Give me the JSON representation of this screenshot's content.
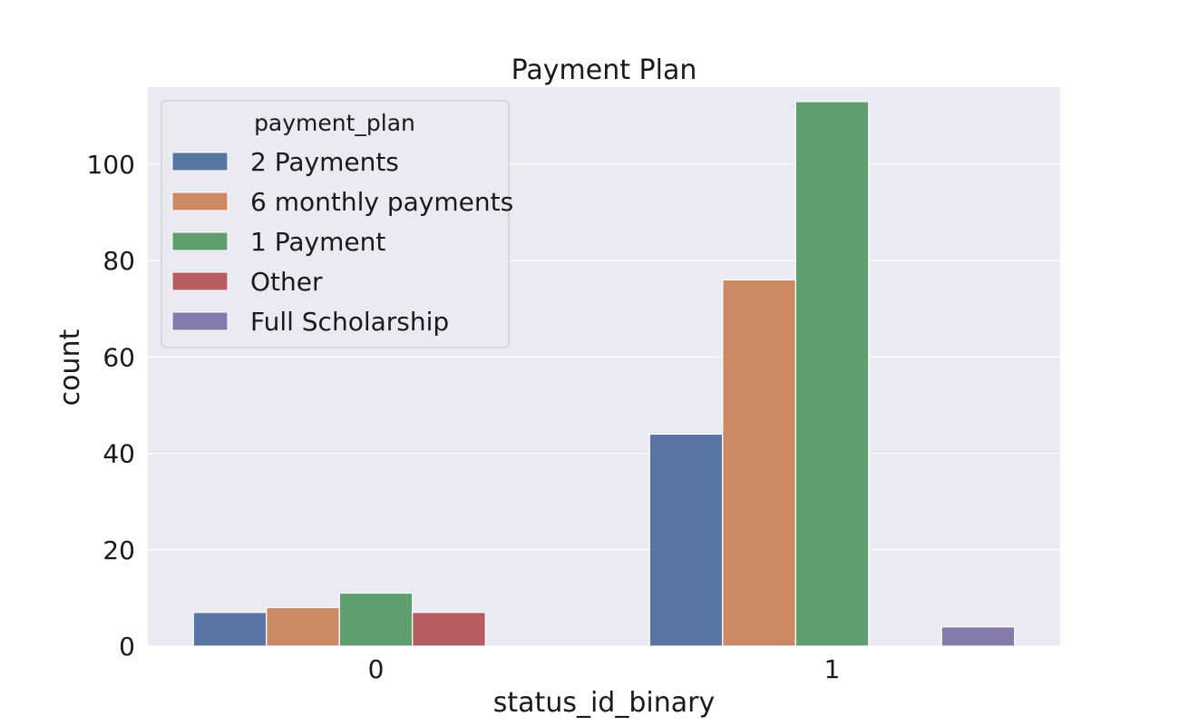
{
  "chart_data": {
    "type": "bar",
    "title": "Payment Plan",
    "xlabel": "status_id_binary",
    "ylabel": "count",
    "categories": [
      "0",
      "1"
    ],
    "ylim": [
      0,
      116
    ],
    "yticks": [
      0,
      20,
      40,
      60,
      80,
      100
    ],
    "grid": true,
    "legend": {
      "title": "payment_plan",
      "placement": "top-left"
    },
    "series": [
      {
        "name": "2 Payments",
        "color": "#5875a4",
        "values": [
          7,
          44
        ]
      },
      {
        "name": "6 monthly payments",
        "color": "#cc8963",
        "values": [
          8,
          76
        ]
      },
      {
        "name": "1 Payment",
        "color": "#5f9e6e",
        "values": [
          11,
          113
        ]
      },
      {
        "name": "Other",
        "color": "#b55d60",
        "values": [
          7,
          null
        ]
      },
      {
        "name": "Full Scholarship",
        "color": "#857aab",
        "values": [
          null,
          4
        ]
      }
    ],
    "colors": {
      "plot_background": "#eaeaf2",
      "gridline": "#ffffff",
      "legend_background": "#eaeaf2",
      "legend_border": "#cccccc"
    }
  }
}
